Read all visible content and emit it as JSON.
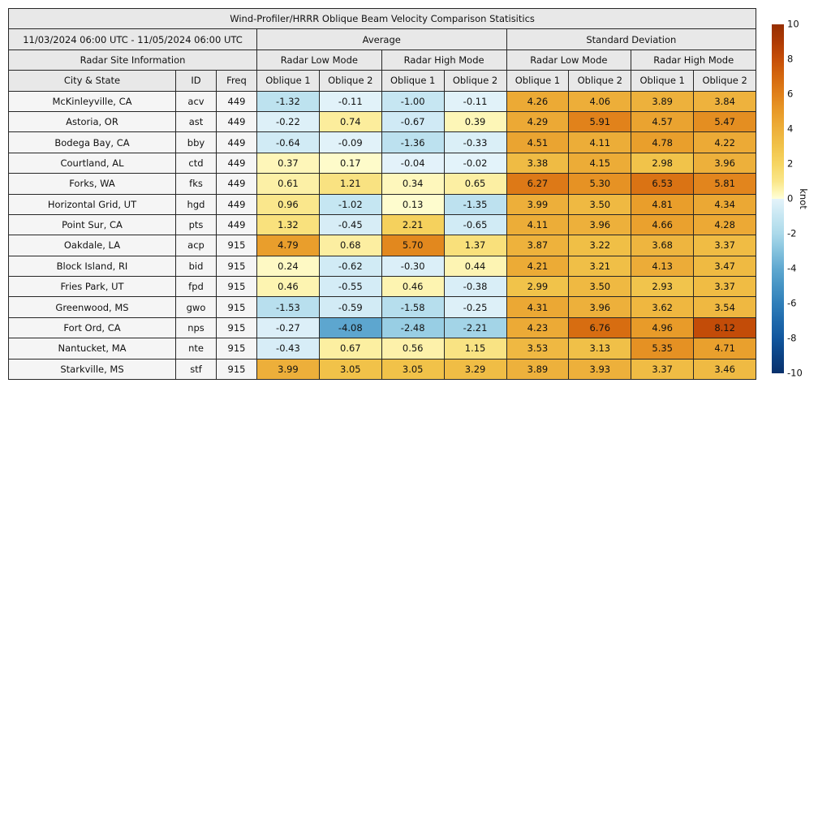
{
  "chart_data": {
    "type": "heatmap",
    "title": "Wind-Profiler/HRRR Oblique Beam Velocity Comparison Statisitics",
    "period": "11/03/2024 06:00 UTC - 11/05/2024 06:00 UTC",
    "group_headers": {
      "average": "Average",
      "std_dev": "Standard Deviation",
      "site_info": "Radar Site Information",
      "low_mode": "Radar Low Mode",
      "high_mode": "Radar High Mode"
    },
    "col_headers": {
      "city": "City & State",
      "id": "ID",
      "freq": "Freq",
      "oblique_1": "Oblique 1",
      "oblique_2": "Oblique 2"
    },
    "value_columns": [
      "Average Radar Low Mode Oblique 1",
      "Average Radar Low Mode Oblique 2",
      "Average Radar High Mode Oblique 1",
      "Average Radar High Mode Oblique 2",
      "Std Dev Radar Low Mode Oblique 1",
      "Std Dev Radar Low Mode Oblique 2",
      "Std Dev Radar High Mode Oblique 1",
      "Std Dev Radar High Mode Oblique 2"
    ],
    "rows": [
      {
        "city": "McKinleyville, CA",
        "id": "acv",
        "freq": "449",
        "values": [
          -1.32,
          -0.11,
          -1.0,
          -0.11,
          4.26,
          4.06,
          3.89,
          3.84
        ]
      },
      {
        "city": "Astoria, OR",
        "id": "ast",
        "freq": "449",
        "values": [
          -0.22,
          0.74,
          -0.67,
          0.39,
          4.29,
          5.91,
          4.57,
          5.47
        ]
      },
      {
        "city": "Bodega Bay, CA",
        "id": "bby",
        "freq": "449",
        "values": [
          -0.64,
          -0.09,
          -1.36,
          -0.33,
          4.51,
          4.11,
          4.78,
          4.22
        ]
      },
      {
        "city": "Courtland, AL",
        "id": "ctd",
        "freq": "449",
        "values": [
          0.37,
          0.17,
          -0.04,
          -0.02,
          3.38,
          4.15,
          2.98,
          3.96
        ]
      },
      {
        "city": "Forks, WA",
        "id": "fks",
        "freq": "449",
        "values": [
          0.61,
          1.21,
          0.34,
          0.65,
          6.27,
          5.3,
          6.53,
          5.81
        ]
      },
      {
        "city": "Horizontal Grid, UT",
        "id": "hgd",
        "freq": "449",
        "values": [
          0.96,
          -1.02,
          0.13,
          -1.35,
          3.99,
          3.5,
          4.81,
          4.34
        ]
      },
      {
        "city": "Point Sur, CA",
        "id": "pts",
        "freq": "449",
        "values": [
          1.32,
          -0.45,
          2.21,
          -0.65,
          4.11,
          3.96,
          4.66,
          4.28
        ]
      },
      {
        "city": "Oakdale, LA",
        "id": "acp",
        "freq": "915",
        "values": [
          4.79,
          0.68,
          5.7,
          1.37,
          3.87,
          3.22,
          3.68,
          3.37
        ]
      },
      {
        "city": "Block Island, RI",
        "id": "bid",
        "freq": "915",
        "values": [
          0.24,
          -0.62,
          -0.3,
          0.44,
          4.21,
          3.21,
          4.13,
          3.47
        ]
      },
      {
        "city": "Fries Park, UT",
        "id": "fpd",
        "freq": "915",
        "values": [
          0.46,
          -0.55,
          0.46,
          -0.38,
          2.99,
          3.5,
          2.93,
          3.37
        ]
      },
      {
        "city": "Greenwood, MS",
        "id": "gwo",
        "freq": "915",
        "values": [
          -1.53,
          -0.59,
          -1.58,
          -0.25,
          4.31,
          3.96,
          3.62,
          3.54
        ]
      },
      {
        "city": "Fort Ord, CA",
        "id": "nps",
        "freq": "915",
        "values": [
          -0.27,
          -4.08,
          -2.48,
          -2.21,
          4.23,
          6.76,
          4.96,
          8.12
        ]
      },
      {
        "city": "Nantucket, MA",
        "id": "nte",
        "freq": "915",
        "values": [
          -0.43,
          0.67,
          0.56,
          1.15,
          3.53,
          3.13,
          5.35,
          4.71
        ]
      },
      {
        "city": "Starkville, MS",
        "id": "stf",
        "freq": "915",
        "values": [
          3.99,
          3.05,
          3.05,
          3.29,
          3.89,
          3.93,
          3.37,
          3.46
        ]
      }
    ],
    "colorbar": {
      "label": "knot",
      "min": -10,
      "max": 10,
      "ticks": [
        10,
        8,
        6,
        4,
        2,
        0,
        -2,
        -4,
        -6,
        -8,
        -10
      ],
      "scale": {
        "negative": [
          [
            -10,
            "#08306B"
          ],
          [
            -9,
            "#0B4284"
          ],
          [
            -8,
            "#11569E"
          ],
          [
            -7,
            "#1E69AC"
          ],
          [
            -6,
            "#2F7EB9"
          ],
          [
            -5,
            "#4593C4"
          ],
          [
            -4,
            "#5FA8D0"
          ],
          [
            -3,
            "#84C2DD"
          ],
          [
            -2,
            "#ABD9EA"
          ],
          [
            -1,
            "#C6E6F2"
          ],
          [
            0,
            "#E4F3FA"
          ]
        ],
        "positive": [
          [
            0,
            "#FFFFD9"
          ],
          [
            0.5,
            "#FDF3AE"
          ],
          [
            1,
            "#FAE689"
          ],
          [
            2,
            "#F6D562"
          ],
          [
            3,
            "#F1C34A"
          ],
          [
            4,
            "#EDAF3A"
          ],
          [
            5,
            "#E89A28"
          ],
          [
            6,
            "#E0801A"
          ],
          [
            7,
            "#D4670E"
          ],
          [
            8,
            "#C64E08"
          ],
          [
            9,
            "#AE3A04"
          ],
          [
            10,
            "#962E02"
          ]
        ]
      }
    },
    "style_colors": {
      "header_bg": "#e8e8e8",
      "label_bg": "#f5f5f5",
      "border": "#262626"
    }
  }
}
